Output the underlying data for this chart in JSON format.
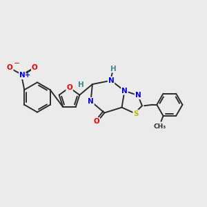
{
  "bg_color": "#ebebeb",
  "bond_color": "#2a2a2a",
  "bond_lw": 1.4,
  "atom_colors": {
    "N": "#0000ee",
    "O": "#ee0000",
    "S": "#bbbb00",
    "H": "#3a8a8a",
    "C": "#2a2a2a"
  },
  "fs": 8.5,
  "fs_small": 7.5
}
